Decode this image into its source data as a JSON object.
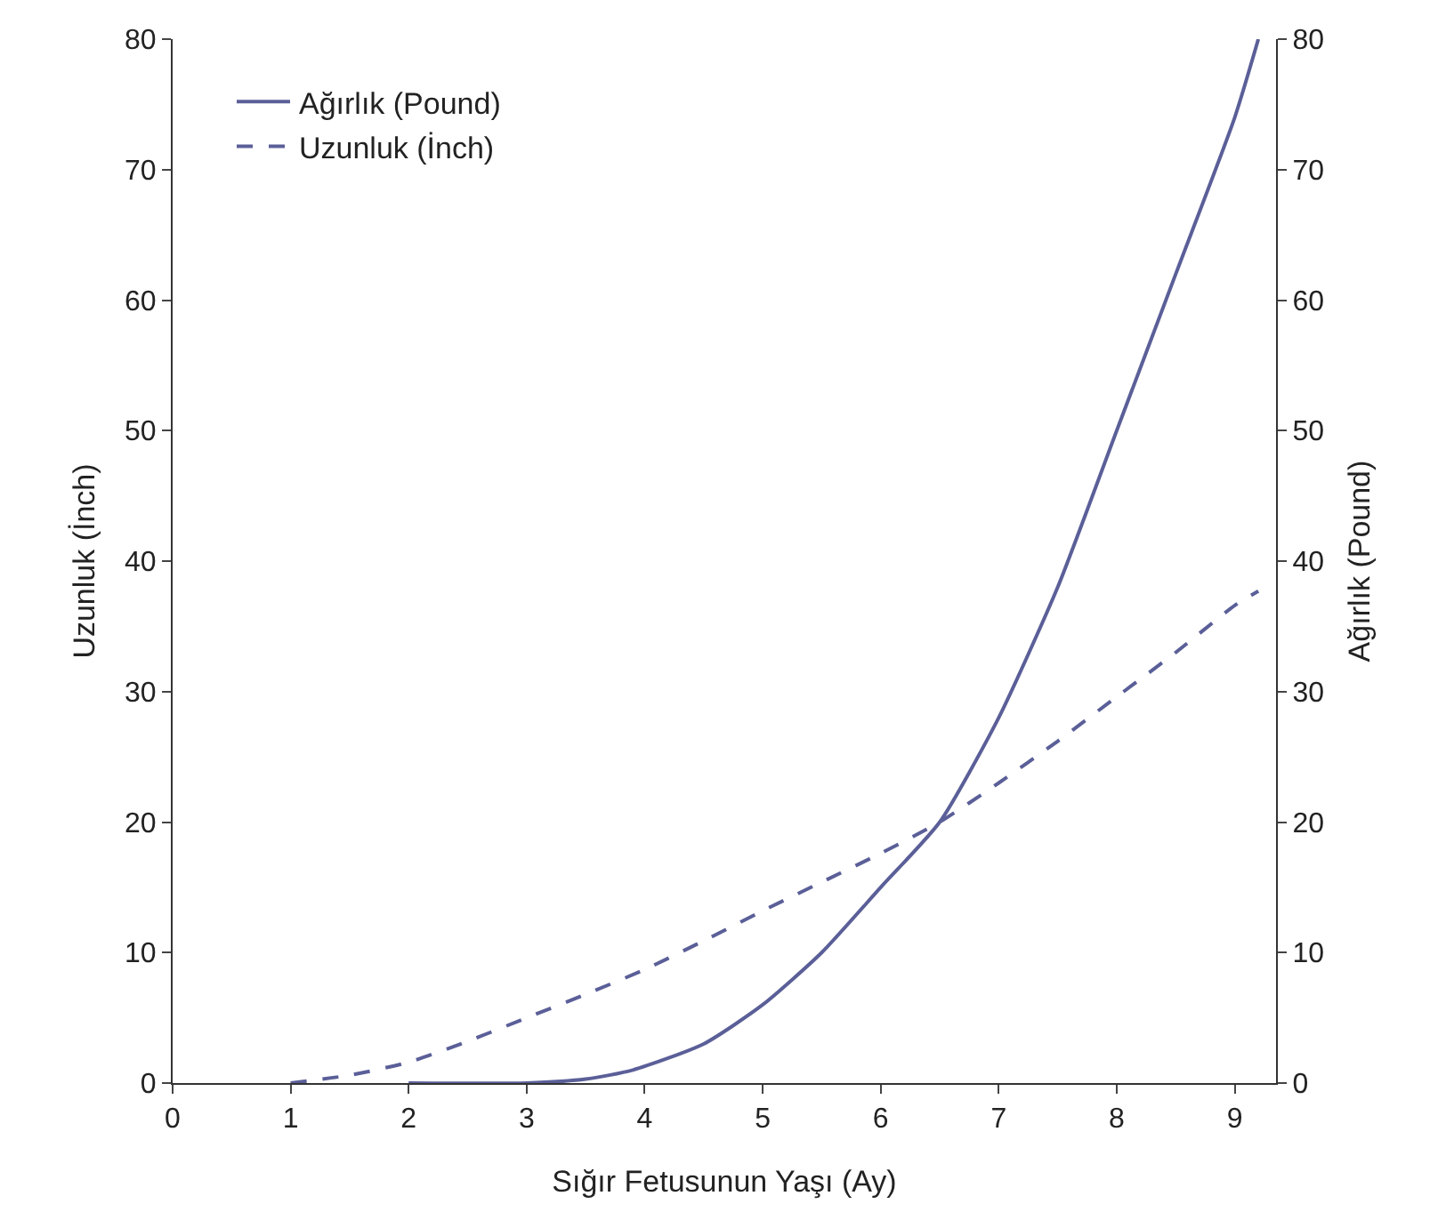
{
  "chart_data": {
    "type": "line",
    "xlabel": "Sığır Fetusunun Yaşı (Ay)",
    "ylabel": "Uzunluk (İnch)",
    "y2label": "Ağırlık (Pound)",
    "series": [
      {
        "name": "Ağırlık (Pound)",
        "color": "#5b5f98",
        "line_style": "solid",
        "axis": "y2",
        "x": [
          2,
          3,
          3.5,
          3.9,
          4.5,
          5,
          5.5,
          6,
          6.5,
          7,
          7.5,
          8,
          8.5,
          9,
          9.2
        ],
        "values": [
          0,
          0,
          0.3,
          1,
          3,
          6,
          10,
          15,
          20,
          28,
          38,
          50,
          62,
          74,
          80
        ]
      },
      {
        "name": "Uzunluk (İnch)",
        "color": "#5b5f98",
        "line_style": "dashed",
        "x": [
          1,
          1.5,
          2,
          2.5,
          3,
          3.5,
          4,
          4.5,
          5,
          5.5,
          6,
          6.5,
          7,
          7.5,
          8,
          8.5,
          9,
          9.2
        ],
        "values": [
          0,
          0.6,
          1.6,
          3.2,
          5,
          6.8,
          8.7,
          10.9,
          13.2,
          15.4,
          17.6,
          20,
          23,
          26.2,
          29.6,
          33,
          36.6,
          37.7
        ]
      }
    ],
    "xlim": [
      0,
      9.35
    ],
    "xticks": [
      0,
      1,
      2,
      3,
      4,
      5,
      6,
      7,
      8,
      9
    ],
    "ylim": [
      0,
      80
    ],
    "yticks": [
      0,
      10,
      20,
      30,
      40,
      50,
      60,
      70,
      80
    ],
    "y2lim": [
      0,
      80
    ],
    "y2ticks": [
      0,
      10,
      20,
      30,
      40,
      50,
      60,
      70,
      80
    ],
    "grid": false,
    "legend": "top left",
    "marker": "none"
  }
}
